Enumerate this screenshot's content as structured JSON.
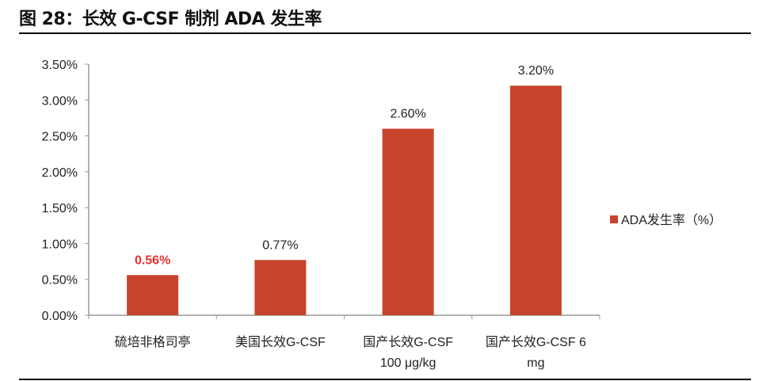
{
  "title": "图 28：长效 G-CSF 制剂 ADA 发生率",
  "chart_data": {
    "type": "bar",
    "categories": [
      "硫培非格司亭",
      "美国长效G-CSF",
      "国产长效G-CSF 100 μg/kg",
      "国产长效G-CSF 6 mg"
    ],
    "category_lines": [
      [
        "硫培非格司亭"
      ],
      [
        "美国长效G-CSF"
      ],
      [
        "国产长效G-CSF",
        "100 μg/kg"
      ],
      [
        "国产长效G-CSF 6",
        "mg"
      ]
    ],
    "series": [
      {
        "name": "ADA发生率（%）",
        "values": [
          0.56,
          0.77,
          2.6,
          3.2
        ],
        "color": "#c8432b"
      }
    ],
    "data_labels": [
      "0.56%",
      "0.77%",
      "2.60%",
      "3.20%"
    ],
    "data_label_colors": [
      "#e8312f",
      "#222222",
      "#222222",
      "#222222"
    ],
    "yticks": [
      "0.00%",
      "0.50%",
      "1.00%",
      "1.50%",
      "2.00%",
      "2.50%",
      "3.00%",
      "3.50%"
    ],
    "ylim": [
      0,
      3.5
    ],
    "unit": "%",
    "grid": false,
    "legend_position": "right"
  }
}
